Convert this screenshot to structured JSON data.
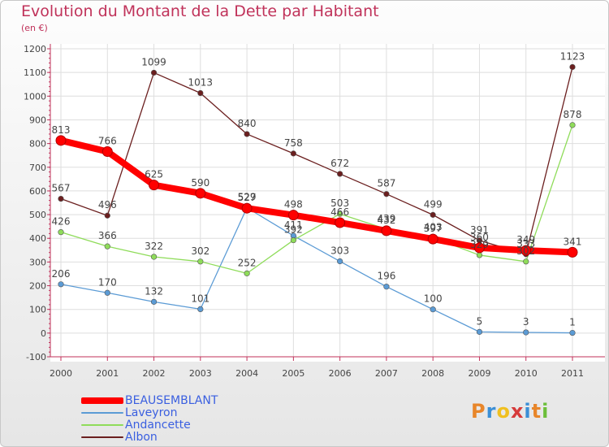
{
  "title": "Evolution du Montant de la Dette par Habitant",
  "unit": "(en €)",
  "brand": "Proxiti",
  "brand_letters": [
    {
      "ch": "P",
      "color": "#e8862a"
    },
    {
      "ch": "r",
      "color": "#3b8fd6"
    },
    {
      "ch": "o",
      "color": "#f0c020"
    },
    {
      "ch": "x",
      "color": "#d63b3b"
    },
    {
      "ch": "i",
      "color": "#3b8fd6"
    },
    {
      "ch": "t",
      "color": "#e8862a"
    },
    {
      "ch": "i",
      "color": "#6cbf3a"
    }
  ],
  "chart_data": {
    "type": "line",
    "title": "Evolution du Montant de la Dette par Habitant",
    "ylabel": "(en €)",
    "xlabel": "",
    "categories": [
      "2000",
      "2001",
      "2002",
      "2003",
      "2004",
      "2005",
      "2006",
      "2007",
      "2008",
      "2009",
      "2010",
      "2011"
    ],
    "ylim": [
      -100,
      1200
    ],
    "yticks": [
      -100,
      0,
      100,
      200,
      300,
      400,
      500,
      600,
      700,
      800,
      900,
      1000,
      1100,
      1200
    ],
    "grid": true,
    "legend_position": "bottom-left",
    "series": [
      {
        "name": "BEAUSEMBLANT",
        "color": "#ff0000",
        "values": [
          813,
          766,
          625,
          590,
          527,
          498,
          466,
          432,
          397,
          360,
          349,
          341
        ]
      },
      {
        "name": "Laveyron",
        "color": "#5b9bd5",
        "values": [
          206,
          170,
          132,
          101,
          529,
          411,
          303,
          196,
          100,
          5,
          3,
          1
        ]
      },
      {
        "name": "Andancette",
        "color": "#8fdc5a",
        "values": [
          426,
          366,
          322,
          302,
          252,
          392,
          503,
          439,
          403,
          329,
          302,
          878
        ]
      },
      {
        "name": "Albon",
        "color": "#6b1f1f",
        "values": [
          567,
          496,
          1099,
          1013,
          840,
          758,
          672,
          587,
          499,
          391,
          333,
          1123
        ]
      }
    ]
  }
}
